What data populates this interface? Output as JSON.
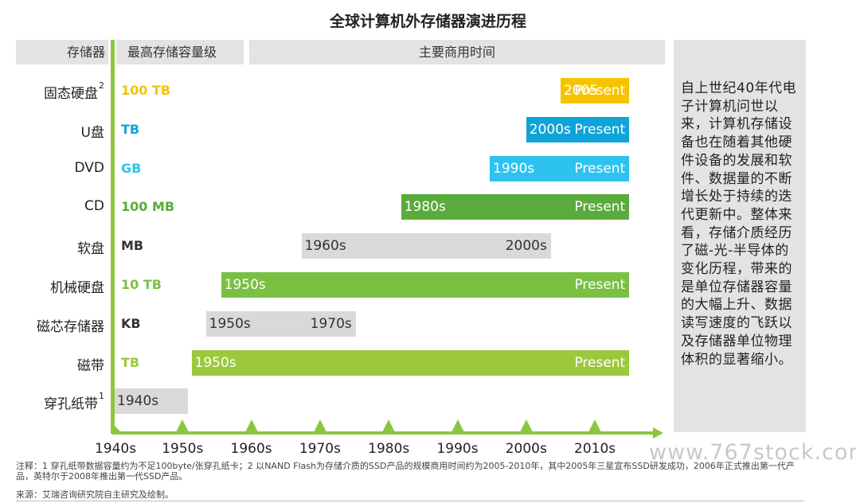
{
  "title": "全球计算机外存储器演进历程",
  "headers": {
    "storage": "存储器",
    "capacity": "最高存储容量级",
    "period": "主要商用时间"
  },
  "side_text": "自上世纪40年代电子计算机问世以来，计算机存储设备也在随着其他硬件设备的发展和软件、数据量的不断增长处于持续的迭代更新中。整体来看，存储介质经历了磁-光-半导体的变化历程，带来的是单位存储器容量的大幅上升、数据读写速度的飞跃以及存储器单位物理体积的显著缩小。",
  "chart_data": {
    "type": "bar",
    "orientation": "horizontal",
    "title": "全球计算机外存储器演进历程",
    "x_ticks": [
      "1940s",
      "1950s",
      "1960s",
      "1970s",
      "1980s",
      "1990s",
      "2000s",
      "2010s"
    ],
    "rows": [
      {
        "name": "固态硬盘",
        "sup": "2",
        "capacity": "100 TB",
        "start": 2005,
        "end": 2015,
        "start_label": "2005",
        "end_label": "Present",
        "color": "#f5c400",
        "cap_color": "#f5c400"
      },
      {
        "name": "U盘",
        "sup": "",
        "capacity": "TB",
        "start": 2000,
        "end": 2015,
        "start_label": "2000s",
        "end_label": "Present",
        "color": "#0ea4d8",
        "cap_color": "#0ea4d8"
      },
      {
        "name": "DVD",
        "sup": "",
        "capacity": "GB",
        "start": 1994.7,
        "end": 2015,
        "start_label": "1990s",
        "end_label": "Present",
        "color": "#2ec3ee",
        "cap_color": "#2ec3ee"
      },
      {
        "name": "CD",
        "sup": "",
        "capacity": "100 MB",
        "start": 1981.8,
        "end": 2015,
        "start_label": "1980s",
        "end_label": "Present",
        "color": "#5aab3d",
        "cap_color": "#5aab3d"
      },
      {
        "name": "软盘",
        "sup": "",
        "capacity": "MB",
        "start": 1967.3,
        "end": 2003.6,
        "start_label": "1960s",
        "end_label": "2000s",
        "color": "#d9d9d9",
        "cap_color": "#333333"
      },
      {
        "name": "机械硬盘",
        "sup": "",
        "capacity": "10 TB",
        "start": 1955.6,
        "end": 2015,
        "start_label": "1950s",
        "end_label": "Present",
        "color": "#7ac143",
        "cap_color": "#7ac143"
      },
      {
        "name": "磁芯存储器",
        "sup": "",
        "capacity": "KB",
        "start": 1953.4,
        "end": 1975.2,
        "start_label": "1950s",
        "end_label": "1970s",
        "color": "#d9d9d9",
        "cap_color": "#333333"
      },
      {
        "name": "磁带",
        "sup": "",
        "capacity": "TB",
        "start": 1951.3,
        "end": 2015,
        "start_label": "1950s",
        "end_label": "Present",
        "color": "#9cc93c",
        "cap_color": "#9cc93c"
      },
      {
        "name": "穿孔纸带",
        "sup": "1",
        "capacity": "",
        "start": 1940,
        "end": 1950.8,
        "start_label": "1940s",
        "end_label": "",
        "color": "#d9d9d9",
        "cap_color": "#333333"
      }
    ]
  },
  "note": "注释：1 穿孔纸带数据容量约为不足100byte/张穿孔纸卡；2 以NAND Flash为存储介质的SSD产品的规模商用时间约为2005-2010年，其中2005年三星宣布SSD研发成功，2006年正式推出第一代产品，英特尔于2008年推出第一代SSD产品。",
  "source": "来源：艾瑞咨询研究院自主研究及绘制。",
  "watermark": "www.767stock.com"
}
